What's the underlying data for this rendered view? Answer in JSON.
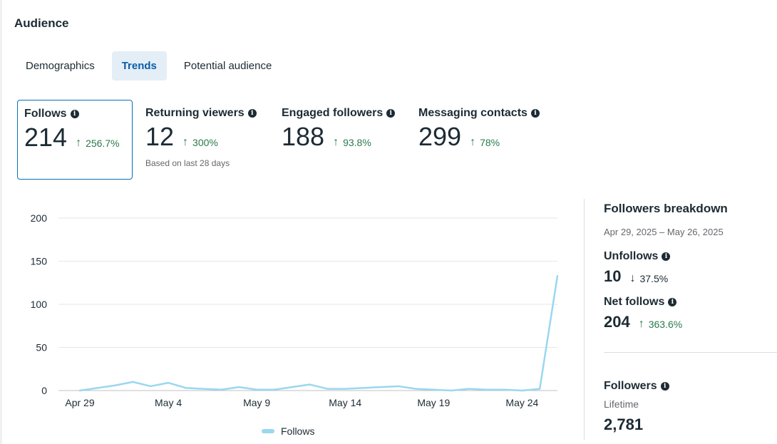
{
  "section_title": "Audience",
  "tabs": [
    {
      "label": "Demographics",
      "active": false
    },
    {
      "label": "Trends",
      "active": true
    },
    {
      "label": "Potential audience",
      "active": false
    }
  ],
  "metrics": {
    "follows": {
      "title": "Follows",
      "value": "214",
      "change": "256.7%",
      "direction": "up"
    },
    "returning_viewers": {
      "title": "Returning viewers",
      "value": "12",
      "change": "300%",
      "direction": "up",
      "note": "Based on last 28 days"
    },
    "engaged_followers": {
      "title": "Engaged followers",
      "value": "188",
      "change": "93.8%",
      "direction": "up"
    },
    "messaging_contacts": {
      "title": "Messaging contacts",
      "value": "299",
      "change": "78%",
      "direction": "up"
    }
  },
  "icons": {
    "info": "info-icon",
    "arrow_up": "arrow-up-icon",
    "arrow_down": "arrow-down-icon"
  },
  "colors": {
    "accent": "#0a6fb8",
    "positive": "#2a7a4b",
    "line": "#9ad7f0"
  },
  "chart_data": {
    "type": "line",
    "x": [
      "Apr 29",
      "Apr 30",
      "May 1",
      "May 2",
      "May 3",
      "May 4",
      "May 5",
      "May 6",
      "May 7",
      "May 8",
      "May 9",
      "May 10",
      "May 11",
      "May 12",
      "May 13",
      "May 14",
      "May 15",
      "May 16",
      "May 17",
      "May 18",
      "May 19",
      "May 20",
      "May 21",
      "May 22",
      "May 23",
      "May 24",
      "May 25",
      "May 26"
    ],
    "x_tick_labels": [
      "Apr 29",
      "May 4",
      "May 9",
      "May 14",
      "May 19",
      "May 24"
    ],
    "series": [
      {
        "name": "Follows",
        "values": [
          0,
          3,
          6,
          10,
          5,
          9,
          3,
          2,
          1,
          4,
          1,
          1,
          4,
          7,
          2,
          2,
          3,
          4,
          5,
          2,
          1,
          0,
          2,
          1,
          1,
          0,
          2,
          133
        ]
      }
    ],
    "ylim": [
      0,
      200
    ],
    "yticks": [
      0,
      50,
      100,
      150,
      200
    ],
    "grid": true,
    "legend_position": "bottom"
  },
  "breakdown": {
    "title": "Followers breakdown",
    "date_range": "Apr 29, 2025 – May 26, 2025",
    "unfollows": {
      "label": "Unfollows",
      "value": "10",
      "change": "37.5%",
      "direction": "down"
    },
    "net_follows": {
      "label": "Net follows",
      "value": "204",
      "change": "363.6%",
      "direction": "up"
    },
    "followers": {
      "label": "Followers",
      "sublabel": "Lifetime",
      "value": "2,781"
    }
  }
}
